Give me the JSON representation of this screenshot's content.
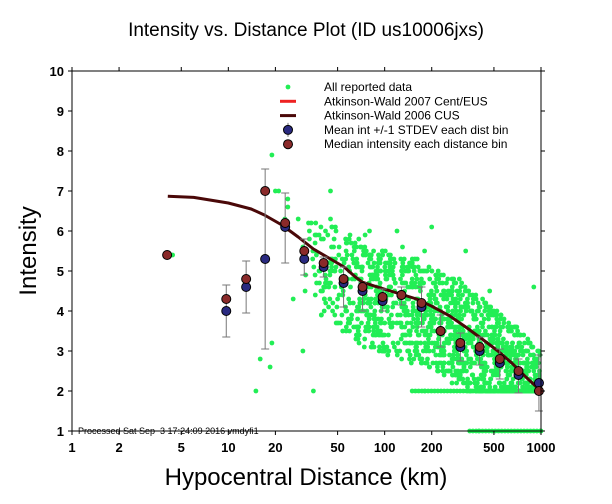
{
  "chart_data": {
    "type": "scatter",
    "title": "Intensity vs. Distance Plot (ID us10006jxs)",
    "xlabel": "Hypocentral Distance (km)",
    "ylabel": "Intensity",
    "xscale": "log",
    "xlim": [
      1,
      1000
    ],
    "ylim": [
      1,
      10
    ],
    "xticks": [
      1,
      2,
      5,
      10,
      20,
      50,
      100,
      200,
      500,
      1000
    ],
    "xtick_labels": [
      "1",
      "2",
      "5",
      "10",
      "20",
      "50",
      "100",
      "200",
      "500",
      "1000"
    ],
    "yticks": [
      1,
      2,
      3,
      4,
      5,
      6,
      7,
      8,
      9,
      10
    ],
    "ytick_labels": [
      "1",
      "2",
      "3",
      "4",
      "5",
      "6",
      "7",
      "8",
      "9",
      "10"
    ],
    "footnote": "Processed Sat Sep  3 17:24:09 2016 vmdyfi1",
    "legend_position": "top-right",
    "legend": [
      {
        "label": "All reported data",
        "kind": "dot",
        "color": "#22ee55"
      },
      {
        "label": "Atkinson-Wald 2007 Cent/EUS",
        "kind": "line",
        "color": "#ee2222"
      },
      {
        "label": "Atkinson-Wald 2006 CUS",
        "kind": "line",
        "color": "#4a0808"
      },
      {
        "label": "Mean int +/-1 STDEV each dist bin",
        "kind": "errdot",
        "color": "#2a2a80"
      },
      {
        "label": "Median intensity each distance bin",
        "kind": "dot-big",
        "color": "#8a2a2a"
      }
    ],
    "colors": {
      "reported": "#22ee55",
      "aw2007": "#ee2222",
      "aw2006": "#4a0808",
      "mean": "#2a2a80",
      "median": "#8a2a2a",
      "errorbar": "#777777"
    },
    "series": [
      {
        "name": "Atkinson-Wald 2006 CUS",
        "type": "line",
        "x": [
          4.1,
          6,
          10,
          14,
          17,
          22,
          28,
          35,
          45,
          55,
          65,
          72,
          90,
          120,
          160,
          200,
          260,
          330,
          420,
          530,
          650,
          800,
          1000
        ],
        "y": [
          6.87,
          6.84,
          6.7,
          6.55,
          6.4,
          6.15,
          5.85,
          5.55,
          5.3,
          5.1,
          4.85,
          4.72,
          4.6,
          4.45,
          4.3,
          4.12,
          3.88,
          3.6,
          3.3,
          3.0,
          2.7,
          2.35,
          2.0
        ]
      },
      {
        "name": "Median intensity each distance bin",
        "type": "points",
        "x": [
          4.06,
          9.7,
          13.0,
          17.2,
          23.1,
          30.6,
          40.7,
          54.6,
          72.2,
          97.0,
          128,
          172,
          228,
          305,
          405,
          545,
          718,
          970
        ],
        "y": [
          5.4,
          4.3,
          4.8,
          7.0,
          6.2,
          5.5,
          5.2,
          4.8,
          4.6,
          4.35,
          4.4,
          4.2,
          3.5,
          3.2,
          3.1,
          2.8,
          2.5,
          2.0
        ]
      },
      {
        "name": "Mean int +/-1 STDEV each dist bin",
        "type": "errorbar",
        "x": [
          9.7,
          13.0,
          17.2,
          23.1,
          30.6,
          40.7,
          54.6,
          72.2,
          97.0,
          128,
          172,
          228,
          305,
          405,
          545,
          718,
          970
        ],
        "y": [
          4.0,
          4.6,
          5.3,
          6.1,
          5.3,
          5.1,
          4.7,
          4.5,
          4.25,
          4.4,
          4.1,
          3.5,
          3.1,
          3.0,
          2.7,
          2.4,
          2.2
        ],
        "err_low": [
          3.35,
          3.95,
          3.05,
          5.2,
          4.9,
          4.85,
          4.1,
          4.0,
          4.0,
          4.15,
          3.6,
          3.1,
          2.75,
          2.65,
          2.3,
          1.95,
          1.5
        ],
        "err_high": [
          4.65,
          5.25,
          7.55,
          6.95,
          5.8,
          5.35,
          5.1,
          4.7,
          4.55,
          4.6,
          4.6,
          3.9,
          3.45,
          3.35,
          3.05,
          2.8,
          2.9
        ]
      }
    ],
    "scatter_summary": {
      "name": "All reported data",
      "description": "Dense cloud of individual reports, mostly between 30 and 1000 km, intensity 2 to 6; rows at intensity 2 (about 150-1000 km) and intensity 1 (about 350-1000 km)",
      "sample_points": [
        [
          4.4,
          5.4
        ],
        [
          16,
          2.8
        ],
        [
          18.5,
          2.6
        ],
        [
          15,
          2.0
        ],
        [
          19,
          3.2
        ],
        [
          20,
          7.0
        ],
        [
          21,
          7.0
        ],
        [
          19,
          7.9
        ],
        [
          24,
          6.6
        ],
        [
          24,
          6.8
        ],
        [
          23,
          6.3
        ],
        [
          28,
          6.3
        ],
        [
          30,
          5.6
        ],
        [
          33,
          6.0
        ],
        [
          33,
          5.8
        ],
        [
          31,
          4.5
        ],
        [
          26,
          4.3
        ],
        [
          45,
          6.3
        ],
        [
          45,
          7.0
        ],
        [
          38,
          5.0
        ],
        [
          40,
          4.5
        ],
        [
          45,
          4.7
        ],
        [
          60,
          5.9
        ],
        [
          55,
          5.2
        ],
        [
          50,
          4.3
        ],
        [
          48,
          3.9
        ],
        [
          65,
          4.9
        ],
        [
          70,
          4.5
        ],
        [
          75,
          5.9
        ],
        [
          80,
          6.0
        ],
        [
          85,
          5.5
        ],
        [
          90,
          5.1
        ],
        [
          95,
          4.0
        ],
        [
          100,
          3.7
        ],
        [
          110,
          5.3
        ],
        [
          120,
          6.0
        ],
        [
          130,
          5.6
        ],
        [
          140,
          5.0
        ],
        [
          150,
          4.6
        ],
        [
          160,
          4.0
        ],
        [
          170,
          3.2
        ],
        [
          180,
          5.5
        ],
        [
          200,
          6.1
        ],
        [
          220,
          5.0
        ],
        [
          240,
          4.4
        ],
        [
          260,
          3.7
        ],
        [
          280,
          3.0
        ],
        [
          300,
          4.8
        ],
        [
          330,
          5.5
        ],
        [
          360,
          4.0
        ],
        [
          400,
          3.3
        ],
        [
          430,
          2.6
        ],
        [
          470,
          4.5
        ],
        [
          500,
          3.9
        ],
        [
          560,
          3.2
        ],
        [
          620,
          2.7
        ],
        [
          700,
          3.6
        ],
        [
          800,
          3.0
        ],
        [
          900,
          4.6
        ],
        [
          950,
          2.4
        ],
        [
          35,
          2.0
        ],
        [
          30,
          3.0
        ],
        [
          180,
          2.0
        ],
        [
          400,
          1.0
        ],
        [
          1000,
          1.0
        ]
      ],
      "rows": [
        {
          "y": 2.0,
          "x_from": 150,
          "x_to": 1000
        },
        {
          "y": 1.0,
          "x_from": 350,
          "x_to": 1000
        }
      ]
    }
  }
}
